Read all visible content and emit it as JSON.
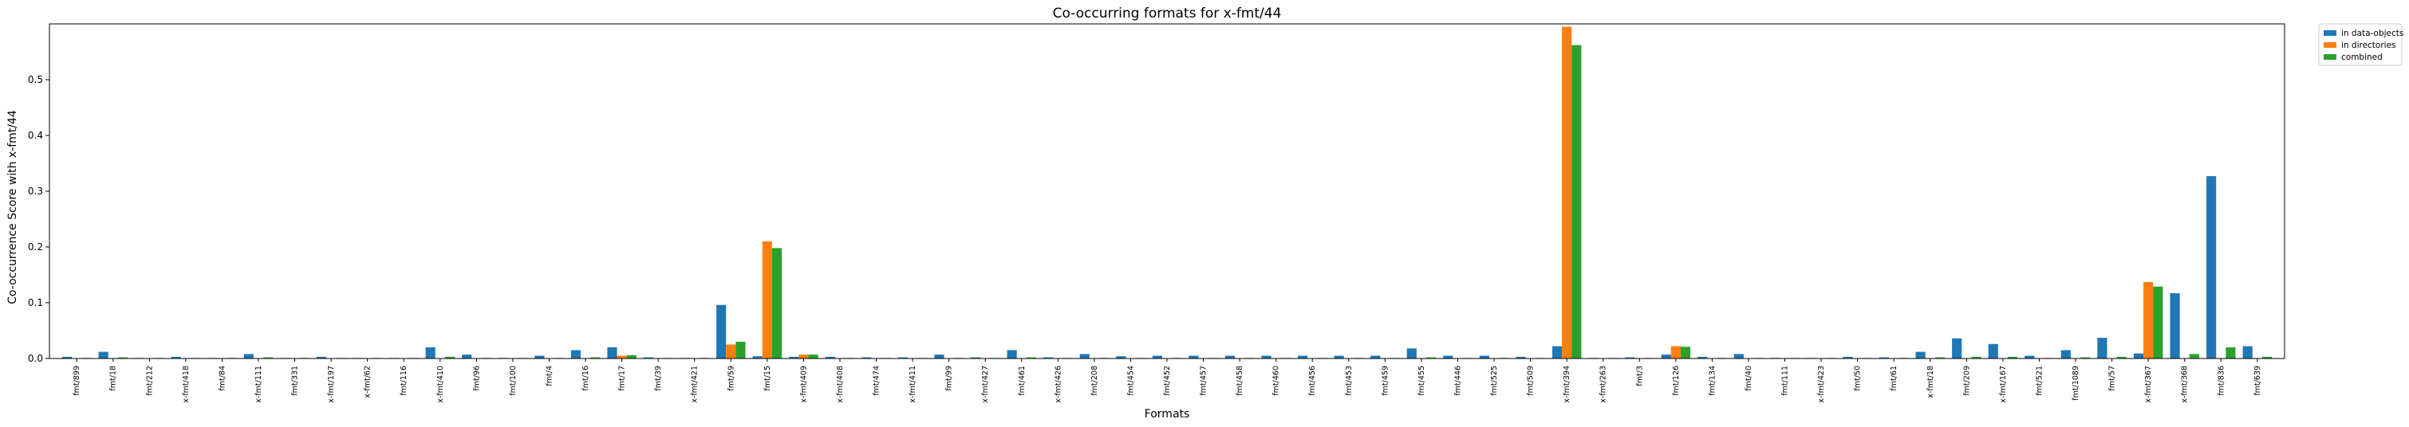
{
  "chart_data": {
    "type": "bar",
    "title": "Co-occurring formats for x-fmt/44",
    "xlabel": "Formats",
    "ylabel": "Co-occurrence Score with x-fmt/44",
    "ylim": [
      0,
      0.6
    ],
    "yticks": [
      "0.0",
      "0.1",
      "0.2",
      "0.3",
      "0.4",
      "0.5"
    ],
    "grid": false,
    "legend_position": "outside-top-right",
    "categories": [
      "fmt/899",
      "fmt/18",
      "fmt/212",
      "x-fmt/418",
      "fmt/84",
      "x-fmt/111",
      "fmt/331",
      "x-fmt/197",
      "x-fmt/62",
      "fmt/116",
      "x-fmt/410",
      "fmt/96",
      "fmt/100",
      "fmt/4",
      "fmt/16",
      "fmt/17",
      "fmt/39",
      "x-fmt/421",
      "fmt/59",
      "fmt/15",
      "x-fmt/409",
      "x-fmt/408",
      "fmt/474",
      "x-fmt/411",
      "fmt/99",
      "x-fmt/427",
      "fmt/461",
      "x-fmt/426",
      "fmt/208",
      "fmt/454",
      "fmt/452",
      "fmt/457",
      "fmt/458",
      "fmt/460",
      "fmt/456",
      "fmt/453",
      "fmt/459",
      "fmt/455",
      "fmt/446",
      "fmt/525",
      "fmt/509",
      "x-fmt/394",
      "x-fmt/263",
      "fmt/3",
      "fmt/126",
      "fmt/134",
      "fmt/40",
      "fmt/111",
      "x-fmt/423",
      "fmt/50",
      "fmt/61",
      "x-fmt/18",
      "fmt/209",
      "x-fmt/167",
      "fmt/521",
      "fmt/1089",
      "fmt/57",
      "x-fmt/367",
      "x-fmt/368",
      "fmt/836",
      "fmt/639"
    ],
    "series": [
      {
        "name": "in data-objects",
        "color": "#1f77b4",
        "values": [
          0.003,
          0.012,
          0.001,
          0.003,
          0.001,
          0.008,
          0.001,
          0.003,
          0.001,
          0.001,
          0.02,
          0.007,
          0.001,
          0.005,
          0.015,
          0.02,
          0.002,
          0.001,
          0.096,
          0.004,
          0.003,
          0.003,
          0.002,
          0.002,
          0.007,
          0.002,
          0.015,
          0.002,
          0.008,
          0.004,
          0.005,
          0.005,
          0.005,
          0.005,
          0.005,
          0.005,
          0.005,
          0.018,
          0.005,
          0.005,
          0.003,
          0.022,
          0.001,
          0.002,
          0.007,
          0.003,
          0.008,
          0.001,
          0.001,
          0.003,
          0.002,
          0.012,
          0.036,
          0.026,
          0.005,
          0.015,
          0.037,
          0.009,
          0.117,
          0.327,
          0.022
        ]
      },
      {
        "name": "in directories",
        "color": "#ff7f0e",
        "values": [
          0,
          0,
          0,
          0,
          0,
          0,
          0,
          0,
          0,
          0,
          0,
          0,
          0,
          0,
          0,
          0.005,
          0,
          0,
          0.025,
          0.21,
          0.007,
          0,
          0,
          0,
          0,
          0,
          0,
          0,
          0,
          0,
          0,
          0,
          0,
          0,
          0,
          0,
          0,
          0,
          0,
          0,
          0,
          0.595,
          0,
          0,
          0.022,
          0,
          0,
          0,
          0,
          0,
          0,
          0,
          0,
          0,
          0,
          0,
          0,
          0.137,
          0,
          0,
          0
        ]
      },
      {
        "name": "combined",
        "color": "#2ca02c",
        "values": [
          0.001,
          0.002,
          0.001,
          0.001,
          0.001,
          0.002,
          0.001,
          0.001,
          0.001,
          0.001,
          0.003,
          0.001,
          0.001,
          0.001,
          0.002,
          0.006,
          0.001,
          0.001,
          0.03,
          0.198,
          0.007,
          0.001,
          0.001,
          0.001,
          0.001,
          0.001,
          0.002,
          0.001,
          0.001,
          0.001,
          0.001,
          0.001,
          0.001,
          0.001,
          0.001,
          0.001,
          0.001,
          0.002,
          0.001,
          0.001,
          0.001,
          0.562,
          0.001,
          0.001,
          0.021,
          0.001,
          0.001,
          0.001,
          0.001,
          0.001,
          0.001,
          0.002,
          0.003,
          0.003,
          0.001,
          0.002,
          0.003,
          0.129,
          0.008,
          0.02,
          0.003
        ]
      }
    ]
  }
}
